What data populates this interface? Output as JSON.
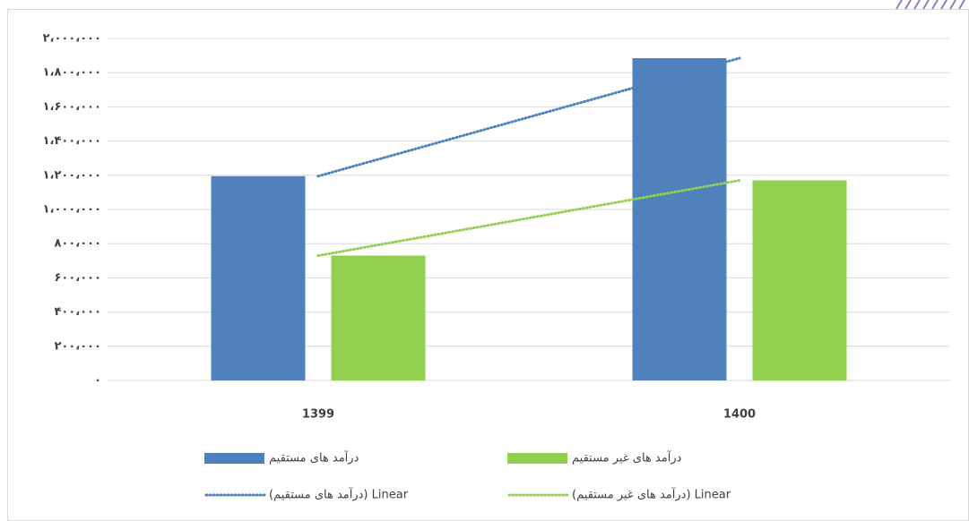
{
  "chart_data": {
    "type": "bar",
    "categories": [
      "1399",
      "1400"
    ],
    "series": [
      {
        "name": "درآمد های مستقیم",
        "color": "#4f81bd",
        "values": [
          1195000,
          1885000
        ]
      },
      {
        "name": "درآمد های غیر مستقیم",
        "color": "#92d050",
        "values": [
          730000,
          1170000
        ]
      }
    ],
    "trendlines": [
      {
        "name": "Linear (درآمد های مستقیم)",
        "series": 0
      },
      {
        "name": "Linear (درآمد های غیر مستقیم)",
        "series": 1
      }
    ],
    "ylim": [
      0,
      2000000
    ],
    "yticks": [
      {
        "value": 0,
        "label": "۰"
      },
      {
        "value": 200000,
        "label": "۲۰۰،۰۰۰"
      },
      {
        "value": 400000,
        "label": "۴۰۰،۰۰۰"
      },
      {
        "value": 600000,
        "label": "۶۰۰،۰۰۰"
      },
      {
        "value": 800000,
        "label": "۸۰۰،۰۰۰"
      },
      {
        "value": 1000000,
        "label": "۱،۰۰۰،۰۰۰"
      },
      {
        "value": 1200000,
        "label": "۱،۲۰۰،۰۰۰"
      },
      {
        "value": 1400000,
        "label": "۱،۴۰۰،۰۰۰"
      },
      {
        "value": 1600000,
        "label": "۱،۶۰۰،۰۰۰"
      },
      {
        "value": 1800000,
        "label": "۱،۸۰۰،۰۰۰"
      },
      {
        "value": 2000000,
        "label": "۲،۰۰۰،۰۰۰"
      }
    ],
    "grid": true
  }
}
